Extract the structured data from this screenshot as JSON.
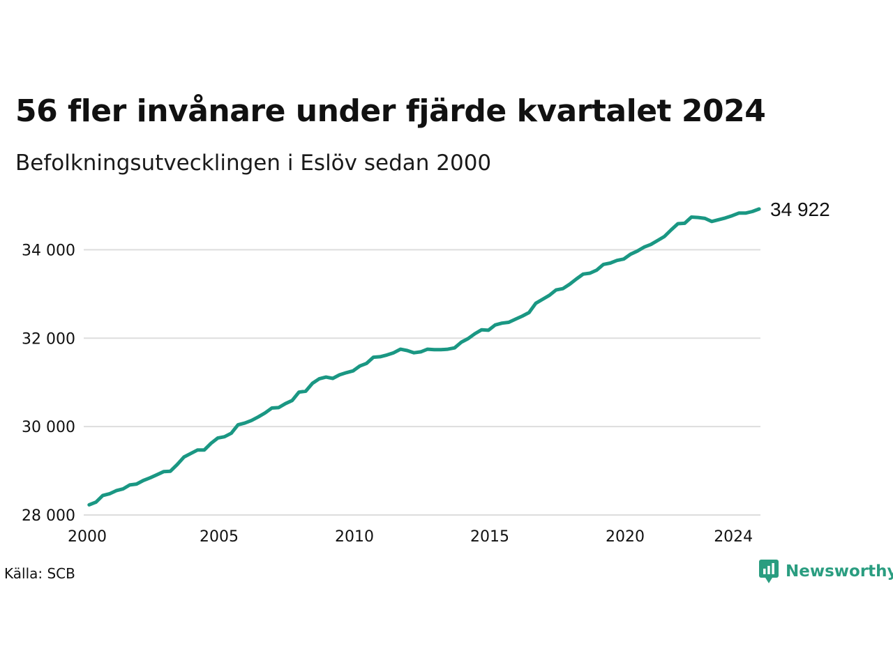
{
  "title": "56 fler invånare under fjärde kvartalet 2024",
  "subtitle": "Befolkningsutvecklingen i Eslöv sedan 2000",
  "source": "Källa: SCB",
  "brand": "Newsworthy",
  "colors": {
    "line": "#1a9783",
    "grid": "#dddddd",
    "brand": "#2a9d80"
  },
  "chart_data": {
    "type": "line",
    "title": "56 fler invånare under fjärde kvartalet 2024",
    "subtitle": "Befolkningsutvecklingen i Eslöv sedan 2000",
    "xlabel": "",
    "ylabel": "",
    "xlim": [
      2000,
      2025
    ],
    "ylim": [
      28000,
      35000
    ],
    "x_ticks": [
      {
        "value": 2000,
        "label": "2000"
      },
      {
        "value": 2005,
        "label": "2005"
      },
      {
        "value": 2010,
        "label": "2010"
      },
      {
        "value": 2015,
        "label": "2015"
      },
      {
        "value": 2020,
        "label": "2020"
      },
      {
        "value": 2024,
        "label": "2024"
      }
    ],
    "y_ticks": [
      {
        "value": 28000,
        "label": "28 000"
      },
      {
        "value": 30000,
        "label": "30 000"
      },
      {
        "value": 32000,
        "label": "32 000"
      },
      {
        "value": 34000,
        "label": "34 000"
      }
    ],
    "grid": true,
    "end_label": "34 922",
    "series": [
      {
        "x": [
          "2000 Q1",
          "2000 Q2",
          "2000 Q3",
          "2000 Q4",
          "2001 Q1",
          "2001 Q2",
          "2001 Q3",
          "2001 Q4",
          "2002 Q1",
          "2002 Q2",
          "2002 Q3",
          "2002 Q4",
          "2003 Q1",
          "2003 Q2",
          "2003 Q3",
          "2003 Q4",
          "2004 Q1",
          "2004 Q2",
          "2004 Q3",
          "2004 Q4",
          "2005 Q1",
          "2005 Q2",
          "2005 Q3",
          "2005 Q4",
          "2006 Q1",
          "2006 Q2",
          "2006 Q3",
          "2006 Q4",
          "2007 Q1",
          "2007 Q2",
          "2007 Q3",
          "2007 Q4",
          "2008 Q1",
          "2008 Q2",
          "2008 Q3",
          "2008 Q4",
          "2009 Q1",
          "2009 Q2",
          "2009 Q3",
          "2009 Q4",
          "2010 Q1",
          "2010 Q2",
          "2010 Q3",
          "2010 Q4",
          "2011 Q1",
          "2011 Q2",
          "2011 Q3",
          "2011 Q4",
          "2012 Q1",
          "2012 Q2",
          "2012 Q3",
          "2012 Q4",
          "2013 Q1",
          "2013 Q2",
          "2013 Q3",
          "2013 Q4",
          "2014 Q1",
          "2014 Q2",
          "2014 Q3",
          "2014 Q4",
          "2015 Q1",
          "2015 Q2",
          "2015 Q3",
          "2015 Q4",
          "2016 Q1",
          "2016 Q2",
          "2016 Q3",
          "2016 Q4",
          "2017 Q1",
          "2017 Q2",
          "2017 Q3",
          "2017 Q4",
          "2018 Q1",
          "2018 Q2",
          "2018 Q3",
          "2018 Q4",
          "2019 Q1",
          "2019 Q2",
          "2019 Q3",
          "2019 Q4",
          "2020 Q1",
          "2020 Q2",
          "2020 Q3",
          "2020 Q4",
          "2021 Q1",
          "2021 Q2",
          "2021 Q3",
          "2021 Q4",
          "2022 Q1",
          "2022 Q2",
          "2022 Q3",
          "2022 Q4",
          "2023 Q1",
          "2023 Q2",
          "2023 Q3",
          "2023 Q4",
          "2024 Q1",
          "2024 Q2",
          "2024 Q3",
          "2024 Q4"
        ],
        "values": [
          28230,
          28290,
          28440,
          28480,
          28550,
          28590,
          28680,
          28700,
          28780,
          28840,
          28910,
          28980,
          28990,
          29140,
          29310,
          29390,
          29470,
          29470,
          29620,
          29740,
          29770,
          29850,
          30040,
          30080,
          30140,
          30220,
          30310,
          30420,
          30430,
          30520,
          30590,
          30780,
          30800,
          30980,
          31080,
          31120,
          31090,
          31170,
          31220,
          31260,
          31370,
          31430,
          31570,
          31580,
          31620,
          31670,
          31750,
          31720,
          31670,
          31690,
          31750,
          31740,
          31740,
          31750,
          31780,
          31910,
          31990,
          32100,
          32190,
          32180,
          32300,
          32340,
          32360,
          32430,
          32500,
          32580,
          32790,
          32880,
          32970,
          33090,
          33120,
          33220,
          33340,
          33450,
          33470,
          33540,
          33670,
          33700,
          33760,
          33790,
          33900,
          33970,
          34060,
          34120,
          34210,
          34300,
          34450,
          34590,
          34600,
          34740,
          34730,
          34710,
          34640,
          34680,
          34720,
          34770,
          34830,
          34830,
          34866,
          34922
        ]
      }
    ]
  }
}
